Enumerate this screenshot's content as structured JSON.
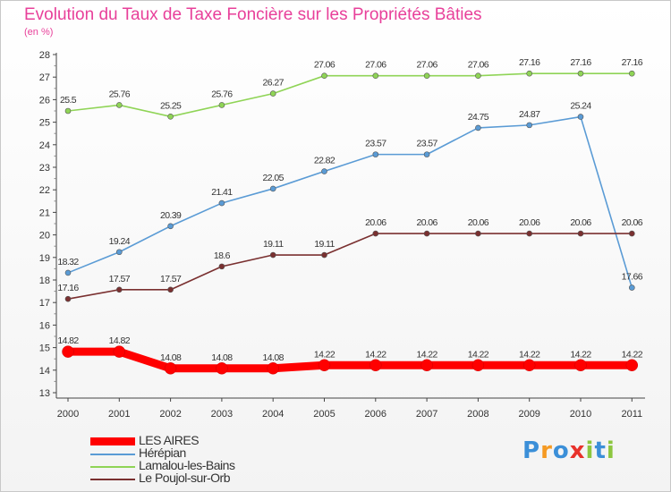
{
  "title": "Evolution du Taux de Taxe Foncière sur les Propriétés Bâties",
  "subtitle": "(en %)",
  "logo": {
    "text": "Proxiti",
    "letters": [
      {
        "ch": "P",
        "color": "#3b8fd8"
      },
      {
        "ch": "r",
        "color": "#f59a23"
      },
      {
        "ch": "o",
        "color": "#3b8fd8"
      },
      {
        "ch": "x",
        "color": "#e8322b"
      },
      {
        "ch": "i",
        "color": "#8cc63f"
      },
      {
        "ch": "t",
        "color": "#3b8fd8"
      },
      {
        "ch": "i",
        "color": "#8cc63f"
      }
    ]
  },
  "chart_data": {
    "type": "line",
    "title": "Evolution du Taux de Taxe Foncière sur les Propriétés Bâties",
    "subtitle": "(en %)",
    "xlabel": "",
    "ylabel": "",
    "x": [
      "2000",
      "2001",
      "2002",
      "2003",
      "2004",
      "2005",
      "2006",
      "2007",
      "2008",
      "2009",
      "2010",
      "2011"
    ],
    "ylim": [
      13,
      28
    ],
    "yticks": [
      "13",
      "14",
      "15",
      "16",
      "17",
      "18",
      "19",
      "20",
      "21",
      "22",
      "23",
      "24",
      "25",
      "26",
      "27",
      "28"
    ],
    "grid": false,
    "legend_position": "bottom-left",
    "series": [
      {
        "name": "LES AIRES",
        "color": "#ff0000",
        "emphasis": true,
        "values": [
          14.82,
          14.82,
          14.08,
          14.08,
          14.08,
          14.22,
          14.22,
          14.22,
          14.22,
          14.22,
          14.22,
          14.22
        ],
        "labels": [
          "14.82",
          "14.82",
          "14.08",
          "14.08",
          "14.08",
          "14.22",
          "14.22",
          "14.22",
          "14.22",
          "14.22",
          "14.22",
          "14.22"
        ]
      },
      {
        "name": "Hérépian",
        "color": "#5a9bd5",
        "emphasis": false,
        "values": [
          18.32,
          19.24,
          20.39,
          21.41,
          22.05,
          22.82,
          23.57,
          23.57,
          24.75,
          24.87,
          25.24,
          17.66
        ],
        "labels": [
          "18.32",
          "19.24",
          "20.39",
          "21.41",
          "22.05",
          "22.82",
          "23.57",
          "23.57",
          "24.75",
          "24.87",
          "25.24",
          "17.66"
        ]
      },
      {
        "name": "Lamalou-les-Bains",
        "color": "#8fd456",
        "emphasis": false,
        "values": [
          25.5,
          25.76,
          25.25,
          25.76,
          26.27,
          27.06,
          27.06,
          27.06,
          27.06,
          27.16,
          27.16,
          27.16
        ],
        "labels": [
          "25.5",
          "25.76",
          "25.25",
          "25.76",
          "26.27",
          "27.06",
          "27.06",
          "27.06",
          "27.06",
          "27.16",
          "27.16",
          "27.16"
        ]
      },
      {
        "name": "Le Poujol-sur-Orb",
        "color": "#7a3030",
        "emphasis": false,
        "values": [
          17.16,
          17.57,
          17.57,
          18.6,
          19.11,
          19.11,
          20.06,
          20.06,
          20.06,
          20.06,
          20.06,
          20.06
        ],
        "labels": [
          "17.16",
          "17.57",
          "17.57",
          "18.6",
          "19.11",
          "19.11",
          "20.06",
          "20.06",
          "20.06",
          "20.06",
          "20.06",
          "20.06"
        ]
      }
    ]
  }
}
